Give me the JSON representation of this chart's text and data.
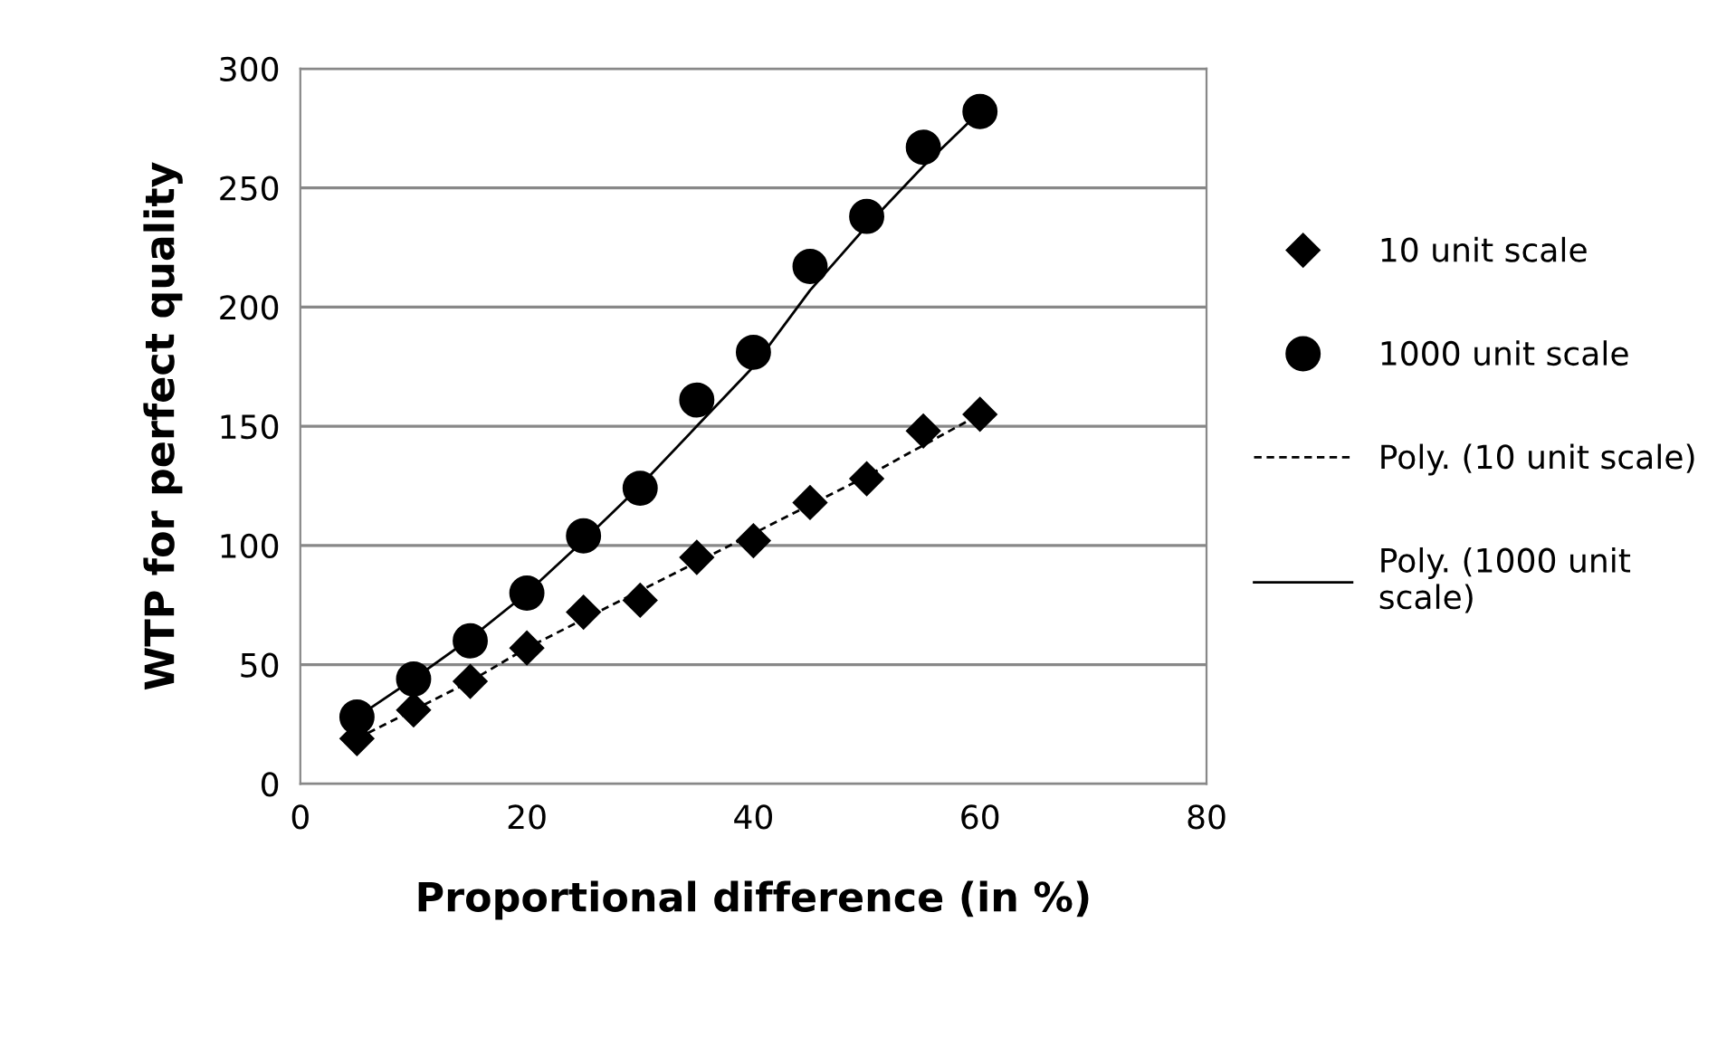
{
  "chart_data": {
    "type": "scatter",
    "xlabel": "Proportional difference (in %)",
    "ylabel": "WTP for perfect quality",
    "xlim": [
      0,
      80
    ],
    "xticks": [
      0,
      20,
      40,
      60,
      80
    ],
    "ylim": [
      0,
      300
    ],
    "yticks": [
      0,
      50,
      100,
      150,
      200,
      250,
      300
    ],
    "grid": "y",
    "legend": "right",
    "series": [
      {
        "name": "10 unit scale",
        "marker": "diamond",
        "color": "#000000",
        "x": [
          5,
          10,
          15,
          20,
          25,
          30,
          35,
          40,
          45,
          50,
          55,
          60
        ],
        "values": [
          19,
          31,
          43,
          57,
          72,
          77,
          95,
          102,
          118,
          128,
          148,
          155
        ]
      },
      {
        "name": "1000 unit scale",
        "marker": "circle",
        "color": "#000000",
        "x": [
          5,
          10,
          15,
          20,
          25,
          30,
          35,
          40,
          45,
          50,
          55,
          60
        ],
        "values": [
          28,
          44,
          60,
          80,
          104,
          124,
          161,
          181,
          217,
          238,
          267,
          282
        ]
      },
      {
        "name": "Poly. (10 unit scale)",
        "type": "line",
        "line_style": "dashed",
        "color": "#000000",
        "x": [
          5,
          10,
          15,
          20,
          25,
          30,
          35,
          40,
          45,
          50,
          55,
          60
        ],
        "values": [
          19,
          31,
          43,
          57,
          69,
          81,
          93,
          105,
          117,
          129,
          142,
          155
        ]
      },
      {
        "name": "Poly. (1000 unit scale)",
        "type": "line",
        "line_style": "solid",
        "color": "#000000",
        "x": [
          5,
          10,
          15,
          20,
          25,
          30,
          35,
          40,
          45,
          50,
          55,
          60
        ],
        "values": [
          28,
          44,
          61,
          80,
          102,
          125,
          150,
          175,
          207,
          234,
          259,
          282
        ]
      }
    ]
  }
}
